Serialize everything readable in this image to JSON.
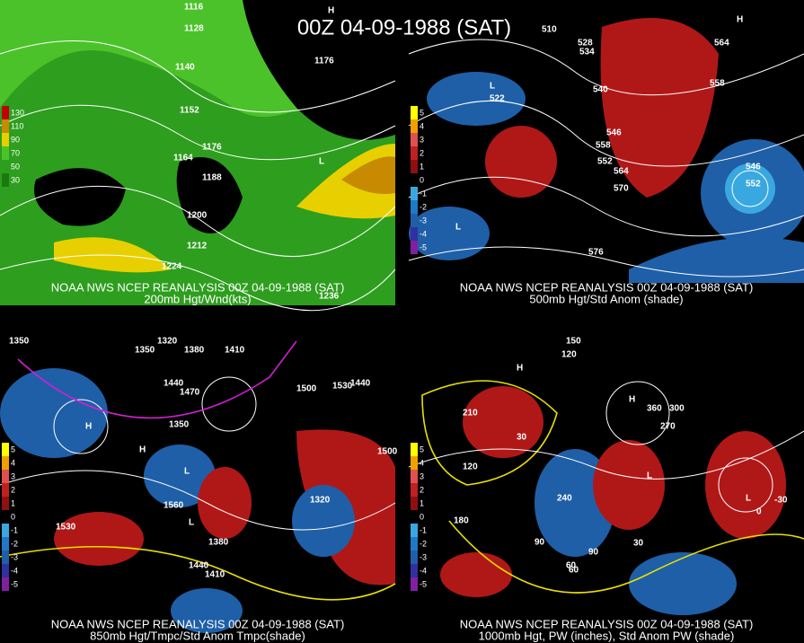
{
  "title": "00Z 04-09-1988 (SAT)",
  "panels": [
    {
      "credit": "NOAA NWS NCEP REANALYSIS 00Z 04-09-1988 (SAT)",
      "caption": "200mb Hgt/Wnd(kts)",
      "legend": [
        "130",
        "110",
        "90",
        "70",
        "50",
        "30"
      ],
      "labels": [
        "1116",
        "1128",
        "1140",
        "1152",
        "1164",
        "1176",
        "1188",
        "1200",
        "1212",
        "1224",
        "1236",
        "1176",
        "H",
        "L"
      ]
    },
    {
      "credit": "NOAA NWS NCEP REANALYSIS 00Z 04-09-1988 (SAT)",
      "caption": "500mb Hgt/Std Anom (shade)",
      "legend": [
        "5",
        "4",
        "3",
        "2",
        "1",
        "0",
        "-1",
        "-2",
        "-3",
        "-4",
        "-5"
      ],
      "labels": [
        "510",
        "522",
        "528",
        "534",
        "540",
        "546",
        "552",
        "558",
        "564",
        "570",
        "576",
        "552",
        "558",
        "564",
        "546",
        "L",
        "L",
        "H"
      ]
    },
    {
      "credit": "NOAA NWS NCEP REANALYSIS 00Z 04-09-1988 (SAT)",
      "caption": "850mb Hgt/Tmpc/Std Anom Tmpc(shade)",
      "legend": [
        "5",
        "4",
        "3",
        "2",
        "1",
        "0",
        "-1",
        "-2",
        "-3",
        "-4",
        "-5"
      ],
      "labels": [
        "1350",
        "1320",
        "1350",
        "1380",
        "1410",
        "1440",
        "1470",
        "1500",
        "1530",
        "1560",
        "1530",
        "1500",
        "1440",
        "1380",
        "1410",
        "1350",
        "1320",
        "1440",
        "H",
        "H",
        "L",
        "L"
      ]
    },
    {
      "credit": "NOAA NWS NCEP REANALYSIS 00Z 04-09-1988 (SAT)",
      "caption": "1000mb Hgt, PW (inches), Std Anom PW (shade)",
      "legend": [
        "5",
        "4",
        "3",
        "2",
        "1",
        "0",
        "-1",
        "-2",
        "-3",
        "-4",
        "-5"
      ],
      "labels": [
        "150",
        "120",
        "90",
        "60",
        "30",
        "0",
        "-30",
        "180",
        "210",
        "240",
        "270",
        "300",
        "360",
        "120",
        "90",
        "60",
        "30",
        "H",
        "H",
        "L",
        "L"
      ]
    }
  ]
}
